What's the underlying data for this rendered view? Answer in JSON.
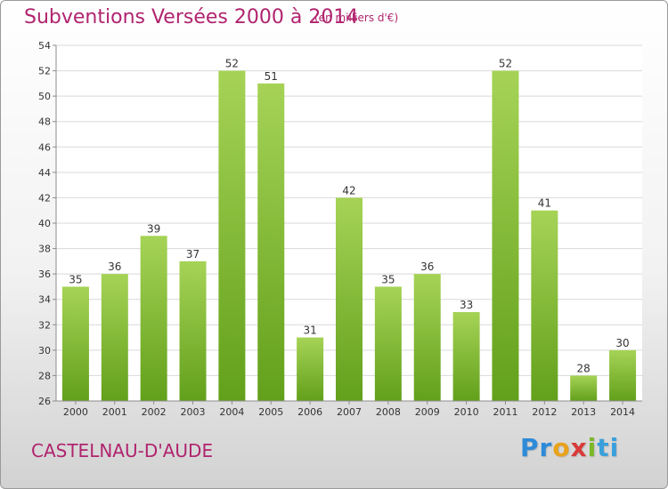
{
  "header": {
    "title": "Subventions Versées 2000 à 2014",
    "unit": "(en milliers d'€)"
  },
  "footer": {
    "commune": "CASTELNAU-D'AUDE",
    "logo_text": "Proxiti",
    "logo_letters": [
      "P",
      "r",
      "o",
      "x",
      "i",
      "ti"
    ]
  },
  "colors": {
    "bar_light": "#a6d356",
    "bar_dark": "#62a01b",
    "title": "#b0246e",
    "grid": "#d9d9d9"
  },
  "chart_data": {
    "type": "bar",
    "categories": [
      "2000",
      "2001",
      "2002",
      "2003",
      "2004",
      "2005",
      "2006",
      "2007",
      "2008",
      "2009",
      "2010",
      "2011",
      "2012",
      "2013",
      "2014"
    ],
    "values": [
      35,
      36,
      39,
      37,
      52,
      51,
      31,
      42,
      35,
      36,
      33,
      52,
      41,
      28,
      30
    ],
    "ylim": [
      26,
      54
    ],
    "yticks": [
      26,
      28,
      30,
      32,
      34,
      36,
      38,
      40,
      42,
      44,
      46,
      48,
      50,
      52,
      54
    ],
    "grid": true,
    "data_labels": true
  }
}
